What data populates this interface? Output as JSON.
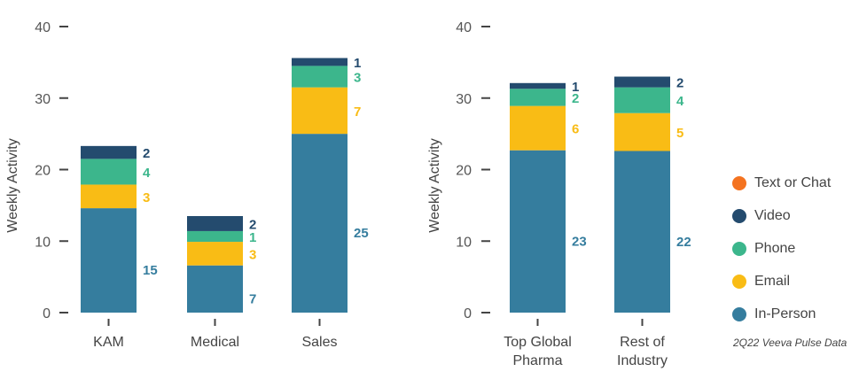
{
  "chart_data": [
    {
      "type": "bar",
      "stacked": true,
      "title": "",
      "xlabel": "",
      "ylabel": "Weekly Activity",
      "ylim": [
        0,
        40
      ],
      "yticks": [
        0,
        10,
        20,
        30,
        40
      ],
      "grid": false,
      "categories": [
        "KAM",
        "Medical",
        "Sales"
      ],
      "series": [
        {
          "name": "In-Person",
          "color": "#357d9e",
          "values": [
            15,
            7,
            25
          ],
          "drawn": [
            14.6,
            6.6,
            25.0
          ]
        },
        {
          "name": "Email",
          "color": "#f9bc15",
          "values": [
            3,
            3,
            7
          ],
          "drawn": [
            3.3,
            3.3,
            6.5
          ]
        },
        {
          "name": "Phone",
          "color": "#3cb68c",
          "values": [
            4,
            1,
            3
          ],
          "drawn": [
            3.6,
            1.5,
            3.0
          ]
        },
        {
          "name": "Video",
          "color": "#244b6e",
          "values": [
            2,
            2,
            1
          ],
          "drawn": [
            1.8,
            2.1,
            1.1
          ]
        }
      ]
    },
    {
      "type": "bar",
      "stacked": true,
      "title": "",
      "xlabel": "",
      "ylabel": "Weekly Activity",
      "ylim": [
        0,
        40
      ],
      "yticks": [
        0,
        10,
        20,
        30,
        40
      ],
      "grid": false,
      "categories": [
        [
          "Top Global",
          "Pharma"
        ],
        [
          "Rest of",
          "Industry"
        ]
      ],
      "series": [
        {
          "name": "In-Person",
          "color": "#357d9e",
          "values": [
            23,
            22
          ],
          "drawn": [
            22.7,
            22.6
          ]
        },
        {
          "name": "Email",
          "color": "#f9bc15",
          "values": [
            6,
            5
          ],
          "drawn": [
            6.2,
            5.3
          ]
        },
        {
          "name": "Phone",
          "color": "#3cb68c",
          "values": [
            2,
            4
          ],
          "drawn": [
            2.4,
            3.6
          ]
        },
        {
          "name": "Video",
          "color": "#244b6e",
          "values": [
            1,
            2
          ],
          "drawn": [
            0.8,
            1.5
          ]
        }
      ]
    }
  ],
  "legend": {
    "placement": "right",
    "items": [
      {
        "label": "Text or Chat",
        "color": "#f47320"
      },
      {
        "label": "Video",
        "color": "#244b6e"
      },
      {
        "label": "Phone",
        "color": "#3cb68c"
      },
      {
        "label": "Email",
        "color": "#f9bc15"
      },
      {
        "label": "In-Person",
        "color": "#357d9e"
      }
    ]
  },
  "source_note": "2Q22 Veeva Pulse Data"
}
